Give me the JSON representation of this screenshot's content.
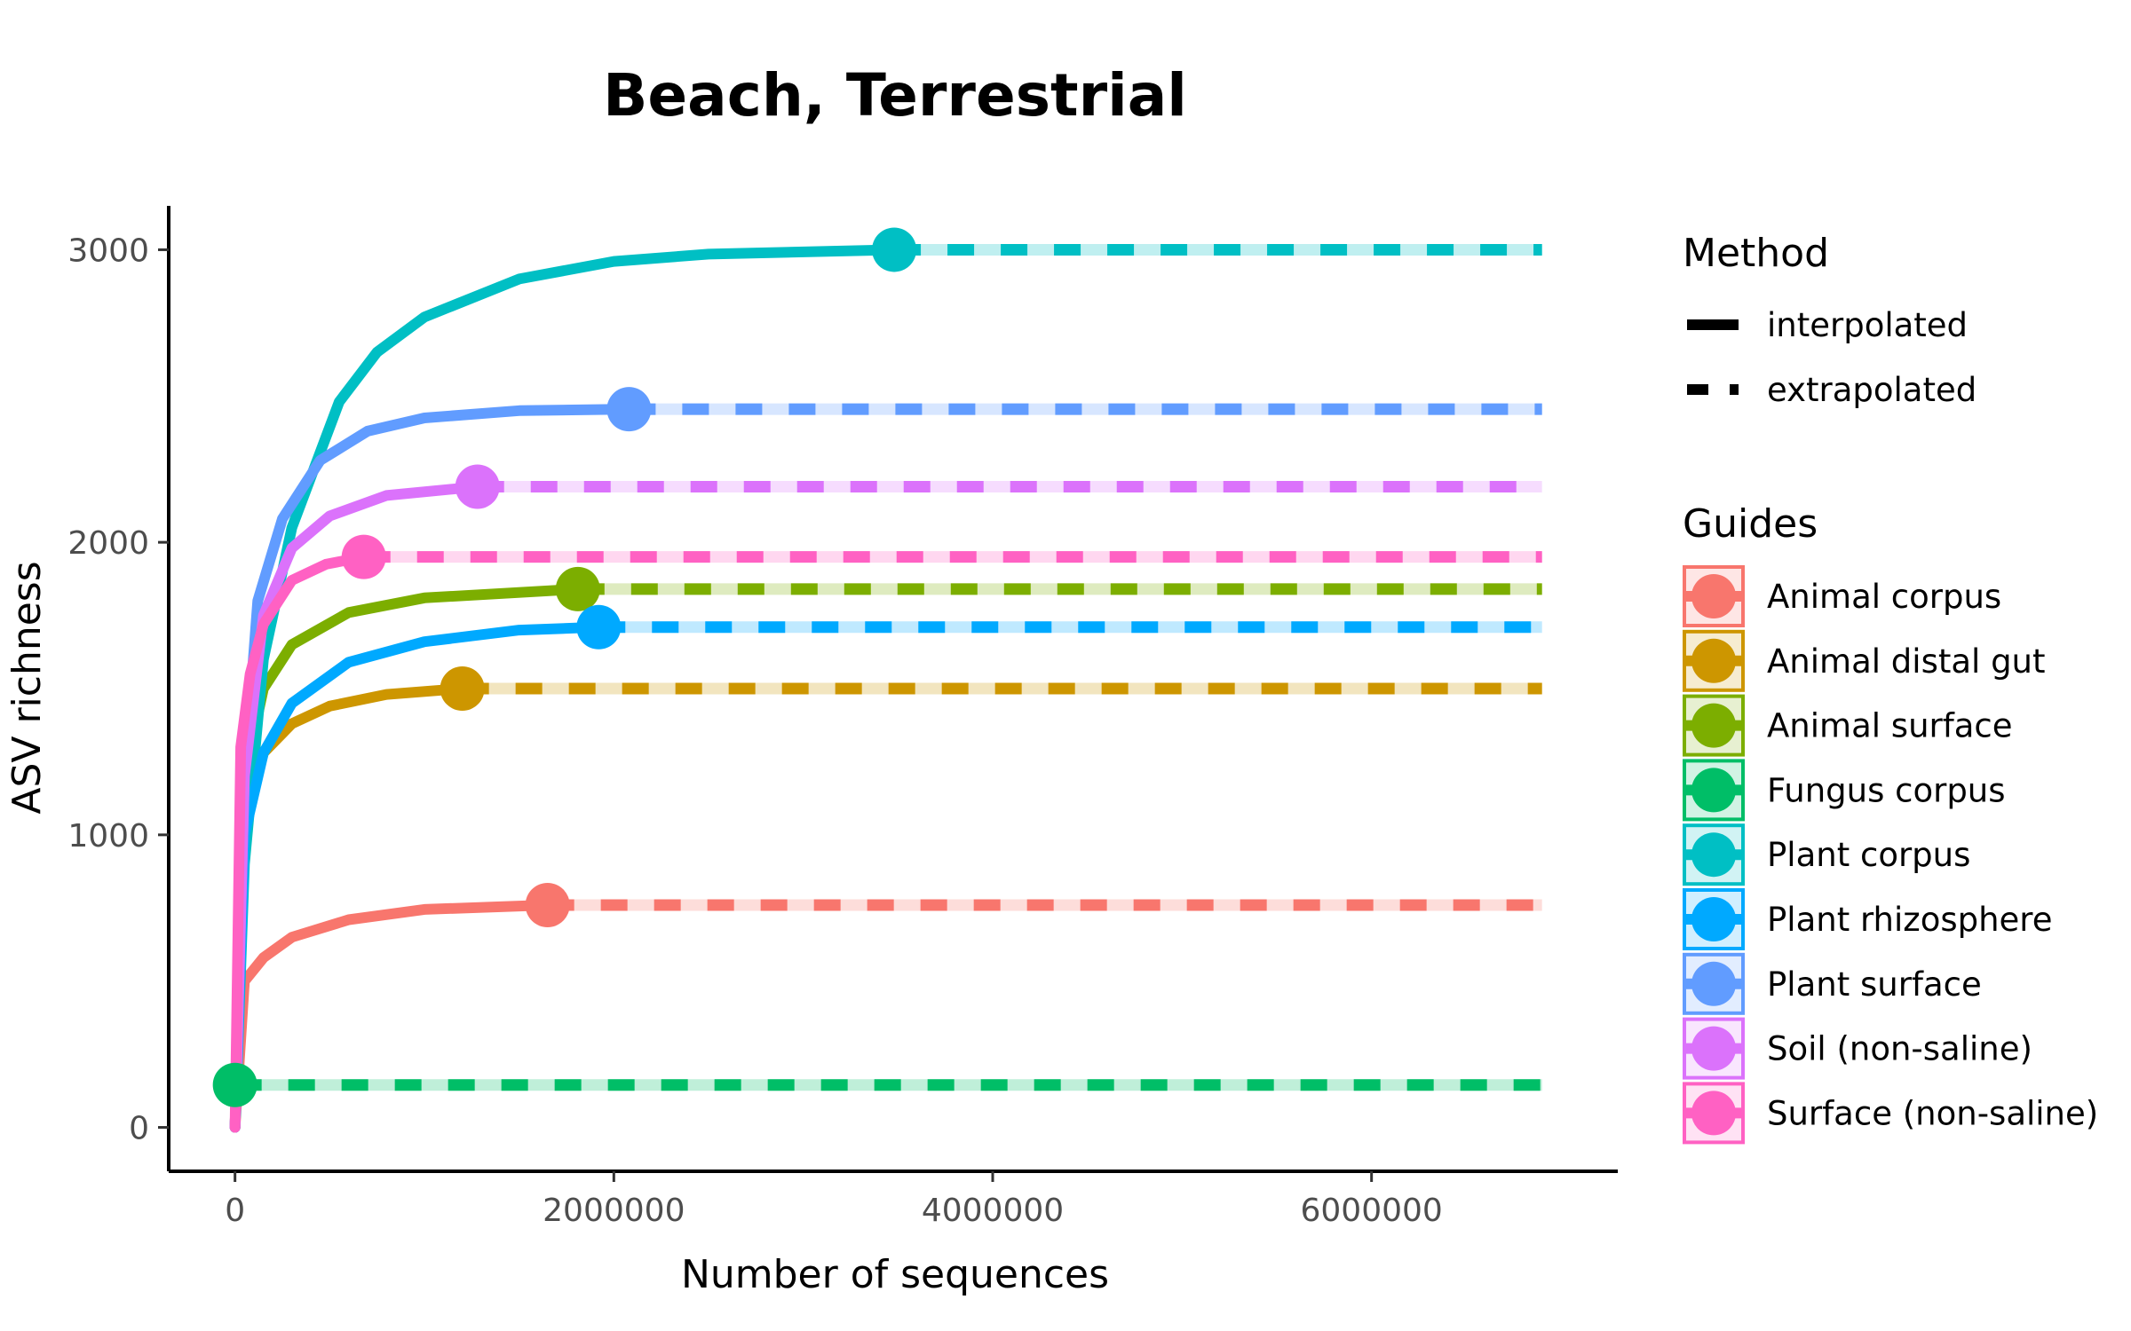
{
  "chart_data": {
    "type": "line",
    "title": "Beach, Terrestrial",
    "xlabel": "Number of sequences",
    "ylabel": "ASV richness",
    "xlim": [
      -350000,
      7300000
    ],
    "ylim": [
      -150,
      3150
    ],
    "x_ticks": [
      0,
      2000000,
      4000000,
      6000000
    ],
    "x_tick_labels": [
      "0",
      "2000000",
      "4000000",
      "6000000"
    ],
    "y_ticks": [
      0,
      1000,
      2000,
      3000
    ],
    "y_tick_labels": [
      "0",
      "1000",
      "2000",
      "3000"
    ],
    "grid": false,
    "extrapolate_to": 6900000,
    "method_legend": {
      "title": "Method",
      "items": [
        {
          "label": "interpolated",
          "style": "solid"
        },
        {
          "label": "extrapolated",
          "style": "dashed"
        }
      ]
    },
    "guides_legend_title": "Guides",
    "series": [
      {
        "name": "Animal corpus",
        "color": "#F8766D",
        "observed_x": 1650000,
        "asymptote": 760,
        "interpolated": [
          [
            0,
            0
          ],
          [
            50000,
            500
          ],
          [
            150000,
            580
          ],
          [
            300000,
            650
          ],
          [
            600000,
            710
          ],
          [
            1000000,
            745
          ],
          [
            1650000,
            760
          ]
        ]
      },
      {
        "name": "Animal distal gut",
        "color": "#CD9600",
        "observed_x": 1200000,
        "asymptote": 1500,
        "interpolated": [
          [
            0,
            0
          ],
          [
            50000,
            1050
          ],
          [
            150000,
            1280
          ],
          [
            300000,
            1380
          ],
          [
            500000,
            1440
          ],
          [
            800000,
            1480
          ],
          [
            1200000,
            1500
          ]
        ]
      },
      {
        "name": "Animal surface",
        "color": "#7CAE00",
        "observed_x": 1810000,
        "asymptote": 1840,
        "interpolated": [
          [
            0,
            0
          ],
          [
            50000,
            1200
          ],
          [
            150000,
            1500
          ],
          [
            300000,
            1650
          ],
          [
            600000,
            1760
          ],
          [
            1000000,
            1810
          ],
          [
            1810000,
            1840
          ]
        ]
      },
      {
        "name": "Fungus corpus",
        "color": "#00BE67",
        "observed_x": 0,
        "asymptote": 145,
        "interpolated": [
          [
            0,
            145
          ]
        ]
      },
      {
        "name": "Plant corpus",
        "color": "#00BFC4",
        "observed_x": 3480000,
        "asymptote": 3000,
        "interpolated": [
          [
            0,
            0
          ],
          [
            50000,
            900
          ],
          [
            150000,
            1600
          ],
          [
            300000,
            2050
          ],
          [
            550000,
            2480
          ],
          [
            750000,
            2650
          ],
          [
            1000000,
            2770
          ],
          [
            1500000,
            2900
          ],
          [
            2000000,
            2960
          ],
          [
            2500000,
            2985
          ],
          [
            3480000,
            3000
          ]
        ]
      },
      {
        "name": "Plant rhizosphere",
        "color": "#00A9FF",
        "observed_x": 1920000,
        "asymptote": 1710,
        "interpolated": [
          [
            0,
            0
          ],
          [
            50000,
            1000
          ],
          [
            150000,
            1280
          ],
          [
            300000,
            1450
          ],
          [
            600000,
            1590
          ],
          [
            1000000,
            1660
          ],
          [
            1500000,
            1700
          ],
          [
            1920000,
            1710
          ]
        ]
      },
      {
        "name": "Plant surface",
        "color": "#619CFF",
        "observed_x": 2080000,
        "asymptote": 2455,
        "interpolated": [
          [
            0,
            0
          ],
          [
            50000,
            1200
          ],
          [
            120000,
            1800
          ],
          [
            250000,
            2080
          ],
          [
            450000,
            2280
          ],
          [
            700000,
            2380
          ],
          [
            1000000,
            2425
          ],
          [
            1500000,
            2450
          ],
          [
            2080000,
            2455
          ]
        ]
      },
      {
        "name": "Soil (non-saline)",
        "color": "#DB72FB",
        "observed_x": 1280000,
        "asymptote": 2190,
        "interpolated": [
          [
            0,
            0
          ],
          [
            50000,
            1200
          ],
          [
            150000,
            1750
          ],
          [
            300000,
            1980
          ],
          [
            500000,
            2090
          ],
          [
            800000,
            2160
          ],
          [
            1280000,
            2190
          ]
        ]
      },
      {
        "name": "Surface (non-saline)",
        "color": "#FF61C3",
        "observed_x": 680000,
        "asymptote": 1950,
        "interpolated": [
          [
            0,
            0
          ],
          [
            30000,
            1300
          ],
          [
            80000,
            1550
          ],
          [
            150000,
            1720
          ],
          [
            300000,
            1870
          ],
          [
            480000,
            1925
          ],
          [
            680000,
            1950
          ]
        ]
      }
    ]
  }
}
